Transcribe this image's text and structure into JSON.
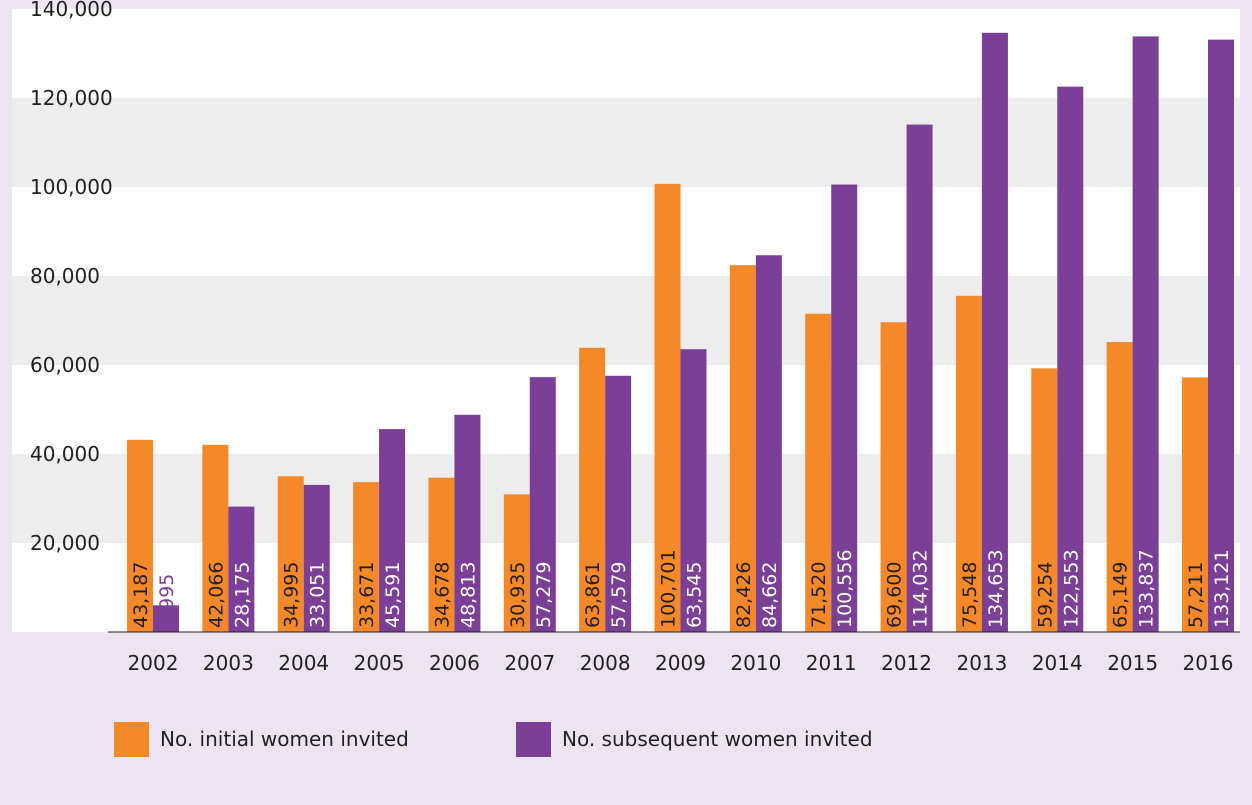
{
  "chart_data": {
    "type": "bar",
    "title": "",
    "xlabel": "",
    "ylabel": "",
    "categories": [
      "2002",
      "2003",
      "2004",
      "2005",
      "2006",
      "2007",
      "2008",
      "2009",
      "2010",
      "2011",
      "2012",
      "2013",
      "2014",
      "2015",
      "2016"
    ],
    "series": [
      {
        "name": "No. initial women invited",
        "color": "#f5892a",
        "values": [
          43187,
          42066,
          34995,
          33671,
          34678,
          30935,
          63861,
          100701,
          82426,
          71520,
          69600,
          75548,
          59254,
          65149,
          57211
        ],
        "labels": [
          "43,187",
          "42,066",
          "34,995",
          "33,671",
          "34,678",
          "30,935",
          "63,861",
          "100,701",
          "82,426",
          "71,520",
          "69,600",
          "75,548",
          "59,254",
          "65,149",
          "57,211"
        ]
      },
      {
        "name": "No. subsequent women invited",
        "color": "#7b3f98",
        "values": [
          5995,
          28175,
          33051,
          45591,
          48813,
          57279,
          57579,
          63545,
          84662,
          100556,
          114032,
          134653,
          122553,
          133837,
          133121
        ],
        "labels": [
          "5,995",
          "28,175",
          "33,051",
          "45,591",
          "48,813",
          "57,279",
          "57,579",
          "63,545",
          "84,662",
          "100,556",
          "114,032",
          "134,653",
          "122,553",
          "133,837",
          "133,121"
        ]
      }
    ],
    "yticks": [
      20000,
      40000,
      60000,
      80000,
      100000,
      120000,
      140000
    ],
    "ytick_labels": [
      "20,000",
      "40,000",
      "60,000",
      "80,000",
      "100,000",
      "120,000",
      "140,000"
    ],
    "ylim": [
      0,
      140000
    ],
    "grid": "alternating-bands",
    "legend_position": "bottom-left"
  }
}
